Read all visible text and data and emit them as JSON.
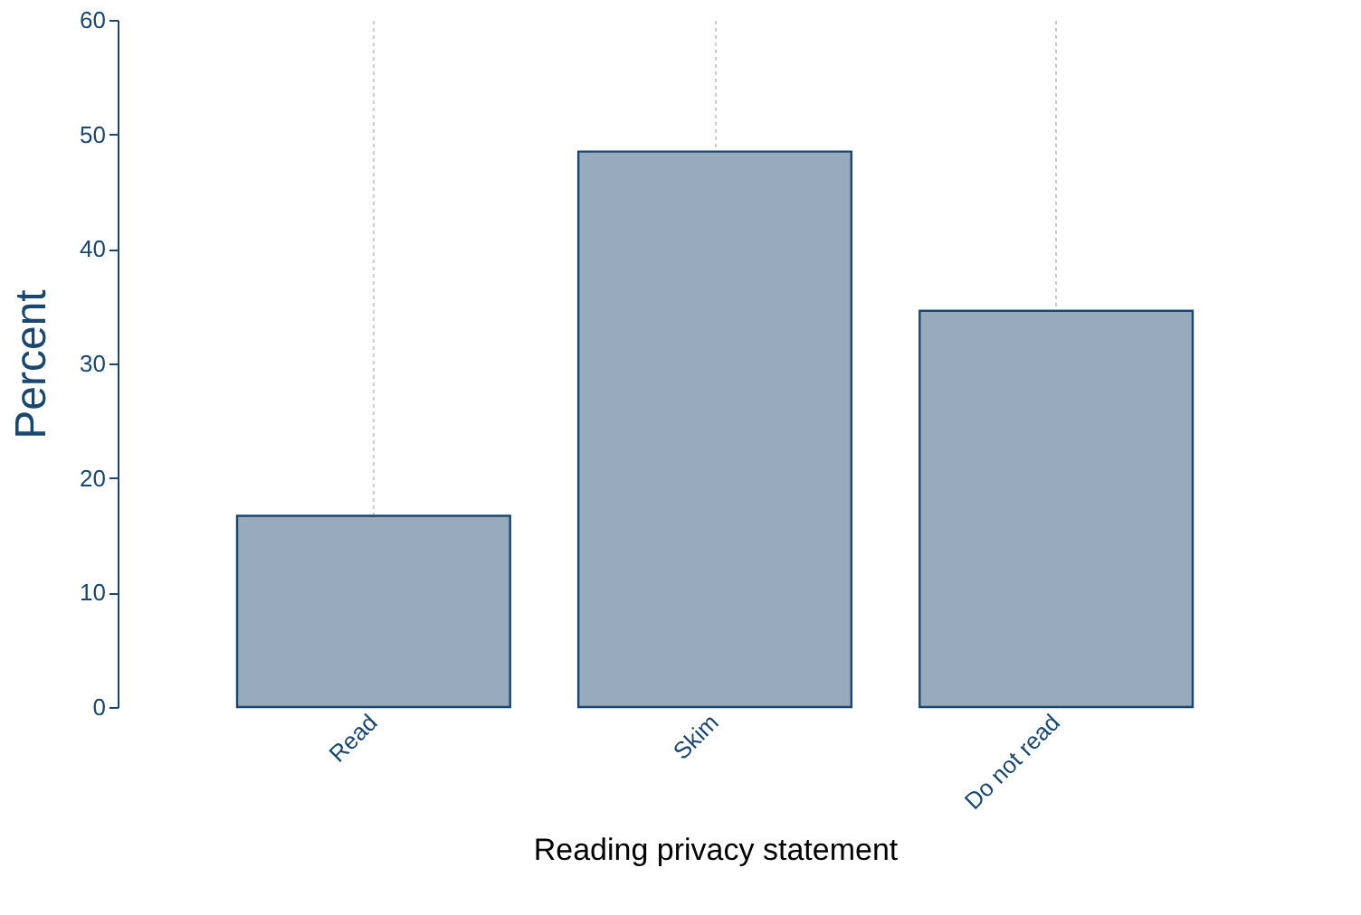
{
  "chart_data": {
    "type": "bar",
    "xlabel": "Reading privacy statement",
    "ylabel": "Percent",
    "categories": [
      "Read",
      "Skim",
      "Do not read"
    ],
    "values": [
      16.7,
      48.5,
      34.6
    ],
    "color": "#98abbd",
    "ylim": [
      0,
      60
    ],
    "yticks": [
      0,
      10,
      20,
      30,
      40,
      50,
      60
    ],
    "grid": "x"
  }
}
